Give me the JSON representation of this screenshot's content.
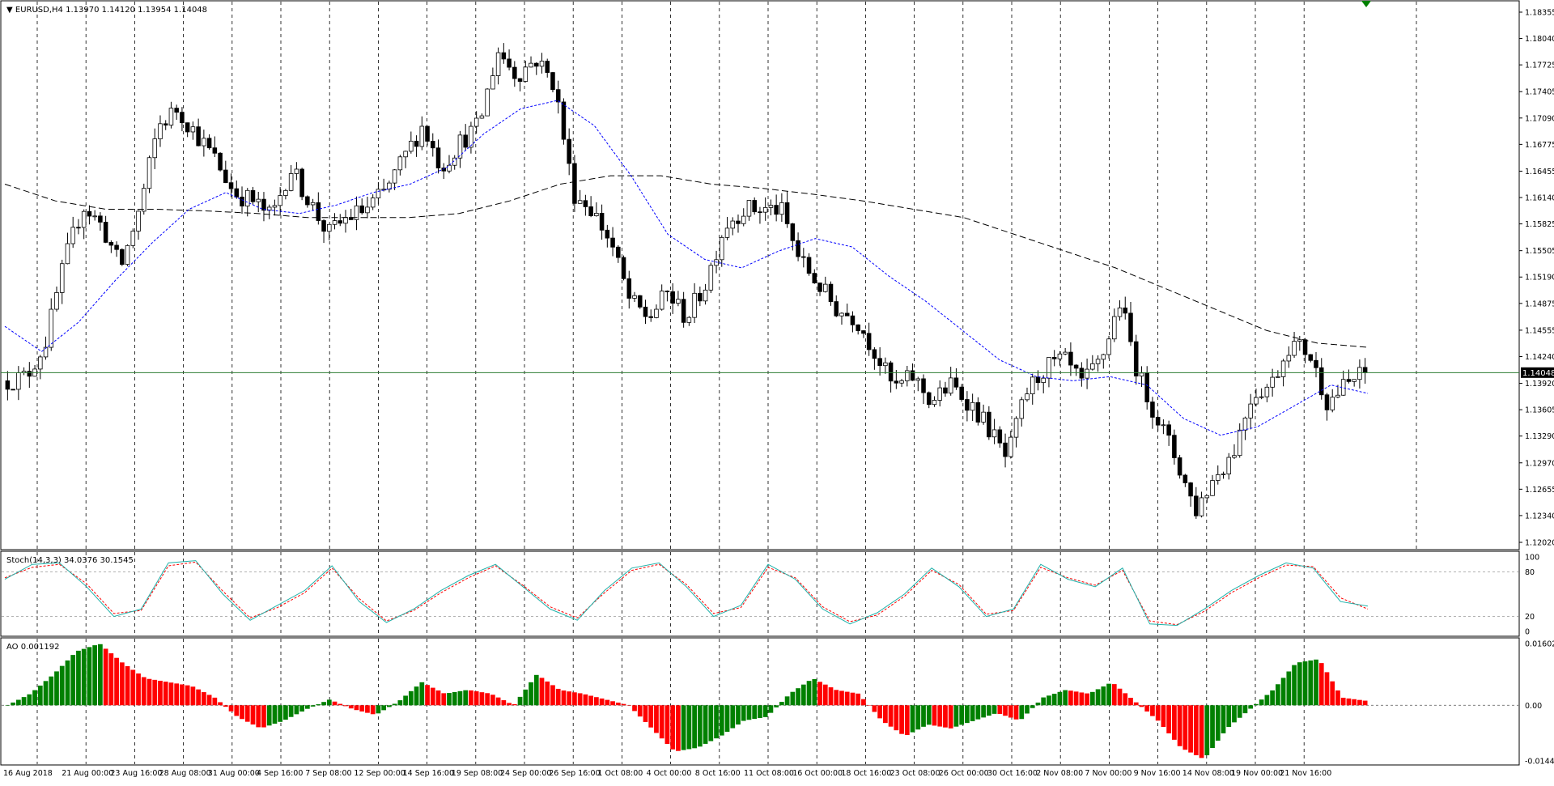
{
  "header": {
    "symbol": "EURUSD,H4",
    "ohlc": "1.13970 1.14120 1.13954 1.14048"
  },
  "colors": {
    "bull": "#008000",
    "bear": "#ff0000",
    "candle_outline": "#000000",
    "ma_fast": "#0000ff",
    "ma_slow": "#000000",
    "current_price_line": "#2e7d32",
    "stoch_main": "#20b2aa",
    "stoch_signal": "#ff0000",
    "grid": "#000000",
    "background": "#ffffff"
  },
  "chart_data": [
    {
      "type": "candlestick",
      "title": "EURUSD,H4",
      "grid": true,
      "ylim": [
        1.1202,
        1.18355
      ],
      "y_ticks": [
        "1.18355",
        "1.18040",
        "1.17725",
        "1.17405",
        "1.17090",
        "1.16775",
        "1.16455",
        "1.16140",
        "1.15825",
        "1.15505",
        "1.15190",
        "1.14875",
        "1.14555",
        "1.14240",
        "1.13920",
        "1.13605",
        "1.13290",
        "1.12970",
        "1.12655",
        "1.12340",
        "1.12020"
      ],
      "current_price": "1.14048",
      "x_ticks": [
        "16 Aug 2018",
        "21 Aug 00:00",
        "23 Aug 16:00",
        "28 Aug 08:00",
        "31 Aug 00:00",
        "4 Sep 16:00",
        "7 Sep 08:00",
        "12 Sep 00:00",
        "14 Sep 16:00",
        "19 Sep 08:00",
        "24 Sep 00:00",
        "26 Sep 16:00",
        "1 Oct 08:00",
        "4 Oct 00:00",
        "8 Oct 16:00",
        "11 Oct 08:00",
        "16 Oct 00:00",
        "18 Oct 16:00",
        "23 Oct 08:00",
        "26 Oct 00:00",
        "30 Oct 16:00",
        "2 Nov 08:00",
        "7 Nov 00:00",
        "9 Nov 16:00",
        "14 Nov 08:00",
        "19 Nov 00:00",
        "21 Nov 16:00"
      ],
      "close_path": [
        1.1395,
        1.14,
        1.144,
        1.1535,
        1.1605,
        1.158,
        1.153,
        1.16,
        1.17,
        1.172,
        1.169,
        1.166,
        1.162,
        1.161,
        1.159,
        1.165,
        1.161,
        1.157,
        1.159,
        1.16,
        1.162,
        1.166,
        1.17,
        1.165,
        1.168,
        1.17,
        1.179,
        1.176,
        1.178,
        1.175,
        1.162,
        1.16,
        1.156,
        1.149,
        1.147,
        1.15,
        1.147,
        1.151,
        1.158,
        1.16,
        1.16,
        1.16,
        1.154,
        1.151,
        1.148,
        1.147,
        1.143,
        1.1385,
        1.14,
        1.137,
        1.139,
        1.137,
        1.134,
        1.13,
        1.138,
        1.141,
        1.142,
        1.139,
        1.142,
        1.149,
        1.14,
        1.135,
        1.13,
        1.124,
        1.128,
        1.131,
        1.138,
        1.139,
        1.144,
        1.143,
        1.137,
        1.139,
        1.1405
      ],
      "sma_fast_path": [
        1.146,
        1.143,
        1.1465,
        1.1515,
        1.156,
        1.16,
        1.162,
        1.16,
        1.1595,
        1.1605,
        1.162,
        1.163,
        1.165,
        1.169,
        1.172,
        1.173,
        1.17,
        1.164,
        1.157,
        1.154,
        1.153,
        1.155,
        1.1565,
        1.1555,
        1.152,
        1.149,
        1.1455,
        1.142,
        1.14,
        1.1395,
        1.14,
        1.139,
        1.135,
        1.133,
        1.134,
        1.1365,
        1.139,
        1.138
      ],
      "sma_slow_path": [
        1.163,
        1.161,
        1.16,
        1.16,
        1.1598,
        1.1595,
        1.159,
        1.159,
        1.159,
        1.1595,
        1.161,
        1.163,
        1.164,
        1.164,
        1.163,
        1.1625,
        1.1618,
        1.161,
        1.16,
        1.159,
        1.157,
        1.155,
        1.153,
        1.1505,
        1.148,
        1.1455,
        1.144,
        1.1435
      ]
    },
    {
      "type": "line",
      "title": "Stoch(14,3,3) 34.0376 30.1545",
      "ylim": [
        0,
        100
      ],
      "y_ticks": [
        "100",
        "80",
        "20",
        "0"
      ],
      "levels": [
        80,
        20
      ],
      "series": [
        {
          "name": "main",
          "values": [
            70,
            90,
            92,
            60,
            20,
            30,
            92,
            95,
            50,
            15,
            35,
            55,
            88,
            40,
            12,
            30,
            55,
            75,
            90,
            60,
            30,
            15,
            55,
            85,
            92,
            60,
            20,
            35,
            90,
            70,
            30,
            10,
            25,
            50,
            85,
            60,
            20,
            30,
            90,
            70,
            60,
            85,
            10,
            8,
            30,
            55,
            75,
            92,
            85,
            40,
            34
          ]
        },
        {
          "name": "signal",
          "values": [
            72,
            86,
            90,
            64,
            24,
            28,
            88,
            93,
            54,
            18,
            32,
            52,
            85,
            44,
            14,
            28,
            52,
            72,
            88,
            62,
            33,
            18,
            52,
            82,
            90,
            63,
            24,
            32,
            86,
            72,
            33,
            13,
            22,
            47,
            82,
            63,
            23,
            28,
            86,
            72,
            62,
            82,
            14,
            9,
            27,
            52,
            72,
            89,
            87,
            45,
            30
          ]
        }
      ]
    },
    {
      "type": "bar",
      "title": "AO 0.001192",
      "ylim": [
        -0.014438,
        0.016026
      ],
      "y_ticks": [
        "0.016026",
        "0.00",
        "-0.014438"
      ],
      "values": [
        0.0,
        0.003,
        0.008,
        0.014,
        0.016,
        0.011,
        0.007,
        0.006,
        0.005,
        0.002,
        -0.003,
        -0.006,
        -0.004,
        -0.001,
        0.0015,
        -0.001,
        -0.0025,
        0.001,
        0.006,
        0.003,
        0.004,
        0.003,
        0.0,
        0.008,
        0.004,
        0.003,
        0.0015,
        0.0,
        -0.006,
        -0.012,
        -0.011,
        -0.008,
        -0.004,
        -0.003,
        0.003,
        0.007,
        0.004,
        0.003,
        -0.004,
        -0.008,
        -0.005,
        -0.006,
        -0.004,
        -0.002,
        -0.004,
        0.002,
        0.004,
        0.003,
        0.006,
        0.001,
        -0.004,
        -0.011,
        -0.014,
        -0.006,
        -0.001,
        0.004,
        0.011,
        0.012,
        0.002,
        0.0012
      ]
    }
  ]
}
